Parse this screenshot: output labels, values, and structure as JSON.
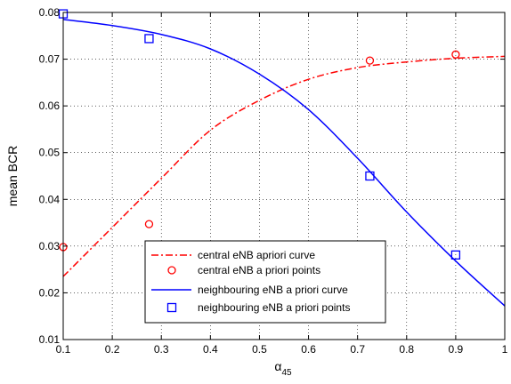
{
  "chart_data": {
    "type": "line",
    "title": "",
    "xlabel": "α",
    "xlabel_sub": "45",
    "ylabel": "mean BCR",
    "xlim": [
      0.1,
      1.0
    ],
    "ylim": [
      0.01,
      0.08
    ],
    "xticks": [
      0.1,
      0.2,
      0.3,
      0.4,
      0.5,
      0.6,
      0.7,
      0.8,
      0.9,
      1.0
    ],
    "xtick_labels": [
      "0.1",
      "0.2",
      "0.3",
      "0.4",
      "0.5",
      "0.6",
      "0.7",
      "0.8",
      "0.9",
      "1"
    ],
    "yticks": [
      0.01,
      0.02,
      0.03,
      0.04,
      0.05,
      0.06,
      0.07,
      0.08
    ],
    "ytick_labels": [
      "0.01",
      "0.02",
      "0.03",
      "0.04",
      "0.05",
      "0.06",
      "0.07",
      "0.08"
    ],
    "grid": true,
    "legend_position": "bottom-center",
    "series": [
      {
        "name": "central eNB apriori curve",
        "style": "dash-dot",
        "color": "#ff0000",
        "x": [
          0.1,
          0.2,
          0.3,
          0.4,
          0.5,
          0.6,
          0.7,
          0.8,
          0.9,
          1.0
        ],
        "y": [
          0.0235,
          0.034,
          0.0445,
          0.0548,
          0.0612,
          0.0657,
          0.0682,
          0.0694,
          0.0702,
          0.0706
        ]
      },
      {
        "name": "central eNB a priori points",
        "style": "circle-markers",
        "color": "#ff0000",
        "x": [
          0.1,
          0.275,
          0.725,
          0.9
        ],
        "y": [
          0.0298,
          0.0347,
          0.0697,
          0.071
        ]
      },
      {
        "name": "neighbouring eNB a priori curve",
        "style": "solid",
        "color": "#0000ff",
        "x": [
          0.1,
          0.2,
          0.3,
          0.4,
          0.5,
          0.6,
          0.7,
          0.8,
          0.9,
          1.0
        ],
        "y": [
          0.0785,
          0.0772,
          0.0753,
          0.0722,
          0.0668,
          0.0592,
          0.0488,
          0.0373,
          0.0268,
          0.0172
        ]
      },
      {
        "name": "neighbouring eNB a priori points",
        "style": "square-markers",
        "color": "#0000ff",
        "x": [
          0.1,
          0.275,
          0.725,
          0.9
        ],
        "y": [
          0.0797,
          0.0744,
          0.045,
          0.0281
        ]
      }
    ]
  }
}
